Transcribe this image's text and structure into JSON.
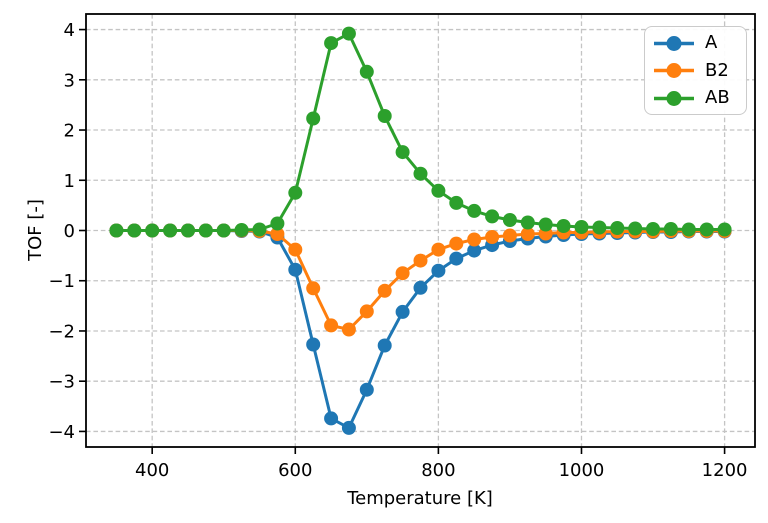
{
  "style": {
    "background": "#ffffff",
    "grid_color": "#c4c4c4",
    "spine_color": "#000000",
    "text_color": "#000000",
    "legend_border_color": "#cbcbcb"
  },
  "chart_data": {
    "type": "line",
    "title": "",
    "xlabel": "Temperature [K]",
    "ylabel": "TOF [-]",
    "marker": "o",
    "marker_size": 7,
    "line_width": 3,
    "grid": true,
    "grid_style": "dashed",
    "legend_position": "upper right",
    "xlim": [
      307.5,
      1242.5
    ],
    "ylim": [
      -4.31,
      4.31
    ],
    "x_ticks": [
      400,
      600,
      800,
      1000,
      1200
    ],
    "x_tick_labels": [
      "400",
      "600",
      "800",
      "1000",
      "1200"
    ],
    "y_ticks": [
      -4,
      -3,
      -2,
      -1,
      0,
      1,
      2,
      3,
      4
    ],
    "y_tick_labels": [
      "−4",
      "−3",
      "−2",
      "−1",
      "0",
      "1",
      "2",
      "3",
      "4"
    ],
    "x": [
      350,
      375,
      400,
      425,
      450,
      475,
      500,
      525,
      550,
      575,
      600,
      625,
      650,
      675,
      700,
      725,
      750,
      775,
      800,
      825,
      850,
      875,
      900,
      925,
      950,
      975,
      1000,
      1025,
      1050,
      1075,
      1100,
      1125,
      1150,
      1175,
      1200
    ],
    "series": [
      {
        "name": "A",
        "color": "#1f77b4",
        "values": [
          0,
          0,
          0,
          0,
          0,
          0,
          0,
          -0.01,
          -0.02,
          -0.14,
          -0.78,
          -2.27,
          -3.74,
          -3.93,
          -3.17,
          -2.29,
          -1.62,
          -1.14,
          -0.8,
          -0.56,
          -0.4,
          -0.29,
          -0.21,
          -0.16,
          -0.12,
          -0.09,
          -0.07,
          -0.06,
          -0.05,
          -0.04,
          -0.03,
          -0.03,
          -0.02,
          -0.02,
          -0.02
        ]
      },
      {
        "name": "B2",
        "color": "#ff7f0e",
        "values": [
          0,
          0,
          0,
          0,
          0,
          0,
          0,
          0,
          -0.01,
          -0.07,
          -0.38,
          -1.15,
          -1.89,
          -1.97,
          -1.61,
          -1.2,
          -0.85,
          -0.6,
          -0.38,
          -0.26,
          -0.18,
          -0.13,
          -0.1,
          -0.07,
          -0.06,
          -0.04,
          -0.04,
          -0.03,
          -0.02,
          -0.02,
          -0.02,
          -0.01,
          -0.01,
          -0.01,
          -0.01
        ]
      },
      {
        "name": "AB",
        "color": "#2ca02c",
        "values": [
          0,
          0,
          0,
          0,
          0,
          0,
          0,
          0.01,
          0.02,
          0.14,
          0.75,
          2.23,
          3.73,
          3.92,
          3.16,
          2.28,
          1.56,
          1.13,
          0.79,
          0.55,
          0.39,
          0.28,
          0.21,
          0.16,
          0.12,
          0.09,
          0.07,
          0.06,
          0.05,
          0.04,
          0.03,
          0.03,
          0.02,
          0.02,
          0.02
        ]
      }
    ]
  }
}
